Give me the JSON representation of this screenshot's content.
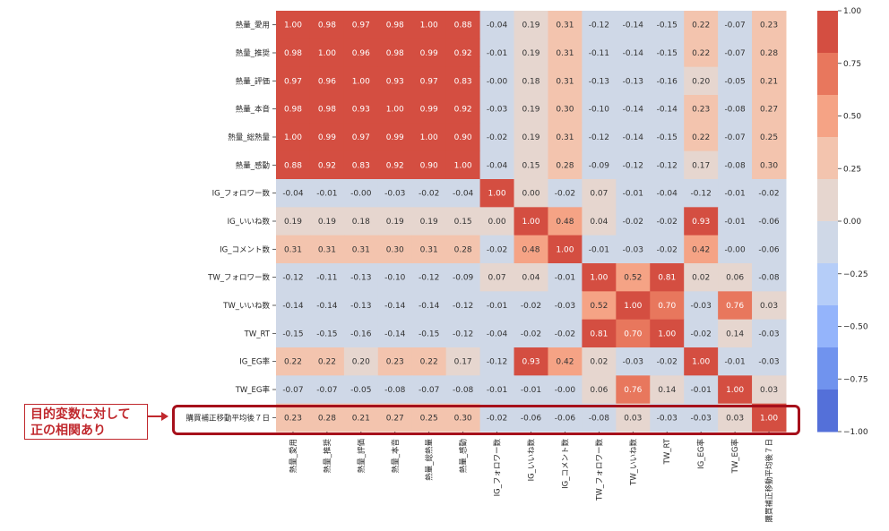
{
  "chart_data": {
    "type": "heatmap",
    "title": "",
    "xlabel": "",
    "ylabel": "",
    "labels": [
      "熱量_愛用",
      "熱量_推奨",
      "熱量_評価",
      "熱量_本音",
      "熱量_総熱量",
      "熱量_感動",
      "IG_フォロワー数",
      "IG_いいね数",
      "IG_コメント数",
      "TW_フォロワー数",
      "TW_いいね数",
      "TW_RT",
      "IG_EG率",
      "TW_EG率",
      "購買補正移動平均後７日"
    ],
    "matrix": [
      [
        "1.00",
        "0.98",
        "0.97",
        "0.98",
        "1.00",
        "0.88",
        "-0.04",
        "0.19",
        "0.31",
        "-0.12",
        "-0.14",
        "-0.15",
        "0.22",
        "-0.07",
        "0.23"
      ],
      [
        "0.98",
        "1.00",
        "0.96",
        "0.98",
        "0.99",
        "0.92",
        "-0.01",
        "0.19",
        "0.31",
        "-0.11",
        "-0.14",
        "-0.15",
        "0.22",
        "-0.07",
        "0.28"
      ],
      [
        "0.97",
        "0.96",
        "1.00",
        "0.93",
        "0.97",
        "0.83",
        "-0.00",
        "0.18",
        "0.31",
        "-0.13",
        "-0.13",
        "-0.16",
        "0.20",
        "-0.05",
        "0.21"
      ],
      [
        "0.98",
        "0.98",
        "0.93",
        "1.00",
        "0.99",
        "0.92",
        "-0.03",
        "0.19",
        "0.30",
        "-0.10",
        "-0.14",
        "-0.14",
        "0.23",
        "-0.08",
        "0.27"
      ],
      [
        "1.00",
        "0.99",
        "0.97",
        "0.99",
        "1.00",
        "0.90",
        "-0.02",
        "0.19",
        "0.31",
        "-0.12",
        "-0.14",
        "-0.15",
        "0.22",
        "-0.07",
        "0.25"
      ],
      [
        "0.88",
        "0.92",
        "0.83",
        "0.92",
        "0.90",
        "1.00",
        "-0.04",
        "0.15",
        "0.28",
        "-0.09",
        "-0.12",
        "-0.12",
        "0.17",
        "-0.08",
        "0.30"
      ],
      [
        "-0.04",
        "-0.01",
        "-0.00",
        "-0.03",
        "-0.02",
        "-0.04",
        "1.00",
        "0.00",
        "-0.02",
        "0.07",
        "-0.01",
        "-0.04",
        "-0.12",
        "-0.01",
        "-0.02"
      ],
      [
        "0.19",
        "0.19",
        "0.18",
        "0.19",
        "0.19",
        "0.15",
        "0.00",
        "1.00",
        "0.48",
        "0.04",
        "-0.02",
        "-0.02",
        "0.93",
        "-0.01",
        "-0.06"
      ],
      [
        "0.31",
        "0.31",
        "0.31",
        "0.30",
        "0.31",
        "0.28",
        "-0.02",
        "0.48",
        "1.00",
        "-0.01",
        "-0.03",
        "-0.02",
        "0.42",
        "-0.00",
        "-0.06"
      ],
      [
        "-0.12",
        "-0.11",
        "-0.13",
        "-0.10",
        "-0.12",
        "-0.09",
        "0.07",
        "0.04",
        "-0.01",
        "1.00",
        "0.52",
        "0.81",
        "0.02",
        "0.06",
        "-0.08"
      ],
      [
        "-0.14",
        "-0.14",
        "-0.13",
        "-0.14",
        "-0.14",
        "-0.12",
        "-0.01",
        "-0.02",
        "-0.03",
        "0.52",
        "1.00",
        "0.70",
        "-0.03",
        "0.76",
        "0.03"
      ],
      [
        "-0.15",
        "-0.15",
        "-0.16",
        "-0.14",
        "-0.15",
        "-0.12",
        "-0.04",
        "-0.02",
        "-0.02",
        "0.81",
        "0.70",
        "1.00",
        "-0.02",
        "0.14",
        "-0.03"
      ],
      [
        "0.22",
        "0.22",
        "0.20",
        "0.23",
        "0.22",
        "0.17",
        "-0.12",
        "0.93",
        "0.42",
        "0.02",
        "-0.03",
        "-0.02",
        "1.00",
        "-0.01",
        "-0.03"
      ],
      [
        "-0.07",
        "-0.07",
        "-0.05",
        "-0.08",
        "-0.07",
        "-0.08",
        "-0.01",
        "-0.01",
        "-0.00",
        "0.06",
        "0.76",
        "0.14",
        "-0.01",
        "1.00",
        "0.03"
      ],
      [
        "0.23",
        "0.28",
        "0.21",
        "0.27",
        "0.25",
        "0.30",
        "-0.02",
        "-0.06",
        "-0.06",
        "-0.08",
        "0.03",
        "-0.03",
        "-0.03",
        "0.03",
        "1.00"
      ]
    ],
    "colorbar": {
      "range": [
        -1.0,
        1.0
      ],
      "ticks": [
        "1.00",
        "0.75",
        "0.50",
        "0.25",
        "0.00",
        "−0.25",
        "−0.50",
        "−0.75",
        "−1.00"
      ],
      "tick_values": [
        1.0,
        0.75,
        0.5,
        0.25,
        0.0,
        -0.25,
        -0.5,
        -0.75,
        -1.0
      ],
      "bins": [
        {
          "min": 0.8,
          "max": 1.0,
          "color": "#d44e41"
        },
        {
          "min": 0.6,
          "max": 0.8,
          "color": "#e8775d"
        },
        {
          "min": 0.4,
          "max": 0.6,
          "color": "#f5a385"
        },
        {
          "min": 0.2,
          "max": 0.4,
          "color": "#f3c4ae"
        },
        {
          "min": 0.0,
          "max": 0.2,
          "color": "#e6d6cf"
        },
        {
          "min": -0.2,
          "max": 0.0,
          "color": "#cfd8e7"
        },
        {
          "min": -0.4,
          "max": -0.2,
          "color": "#b5cdf8"
        },
        {
          "min": -0.6,
          "max": -0.4,
          "color": "#94b4fb"
        },
        {
          "min": -0.8,
          "max": -0.6,
          "color": "#7093ee"
        },
        {
          "min": -1.0,
          "max": -0.8,
          "color": "#5470d9"
        }
      ],
      "placement": "right"
    },
    "highlighted_row": "購買補正移動平均後７日"
  },
  "annotation": {
    "line1": "目的変数に対して",
    "line2": "正の相関あり",
    "color": "#c0282d"
  }
}
